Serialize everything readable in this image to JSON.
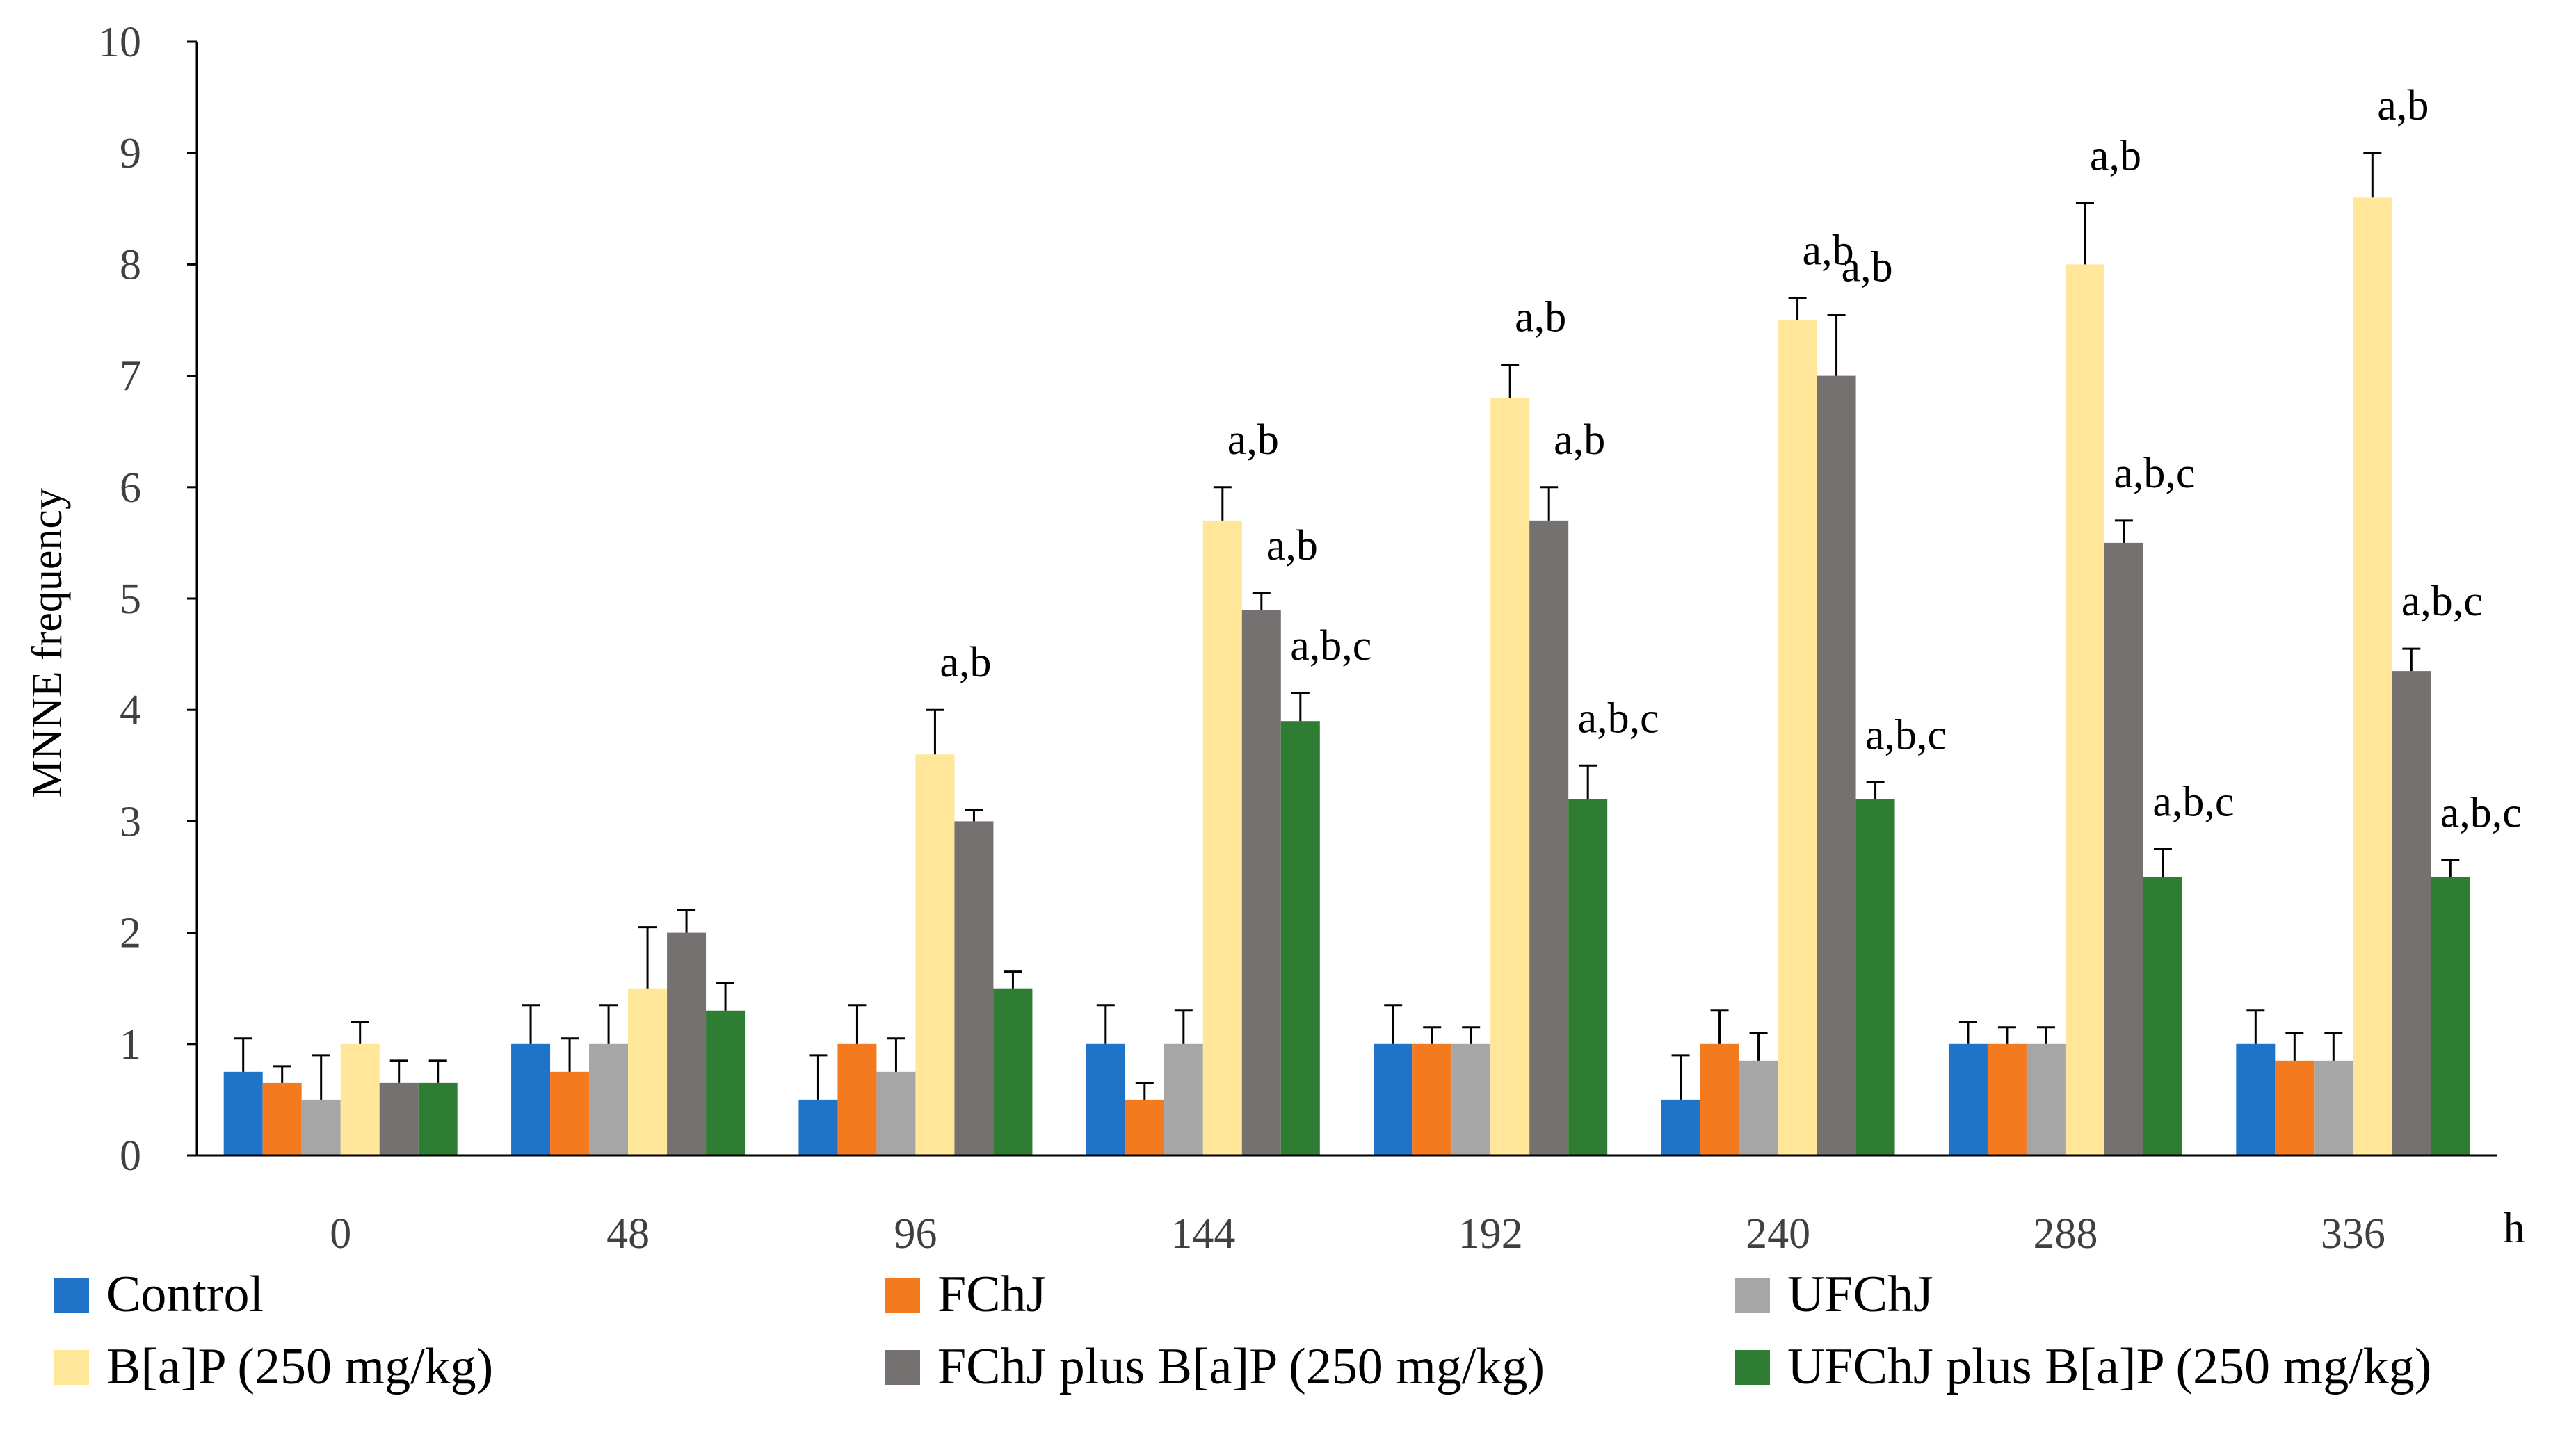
{
  "chart_data": {
    "type": "bar",
    "ylabel": "MNNE  frequency",
    "xunit": "h",
    "ylim": [
      0,
      10
    ],
    "yticks": [
      0,
      1,
      2,
      3,
      4,
      5,
      6,
      7,
      8,
      9,
      10
    ],
    "categories": [
      "0",
      "48",
      "96",
      "144",
      "192",
      "240",
      "288",
      "336"
    ],
    "grid": false,
    "legend_position": "bottom",
    "series": [
      {
        "name": "Control",
        "color": "#1f73c8",
        "values": [
          0.75,
          1.0,
          0.5,
          1.0,
          1.0,
          0.5,
          1.0,
          1.0
        ],
        "errors": [
          0.3,
          0.35,
          0.4,
          0.35,
          0.35,
          0.4,
          0.2,
          0.3
        ],
        "annotations": [
          "",
          "",
          "",
          "",
          "",
          "",
          "",
          ""
        ]
      },
      {
        "name": "FChJ",
        "color": "#f47a20",
        "values": [
          0.65,
          0.75,
          1.0,
          0.5,
          1.0,
          1.0,
          1.0,
          0.85
        ],
        "errors": [
          0.15,
          0.3,
          0.35,
          0.15,
          0.15,
          0.3,
          0.15,
          0.25
        ],
        "annotations": [
          "",
          "",
          "",
          "",
          "",
          "",
          "",
          ""
        ]
      },
      {
        "name": "UFChJ",
        "color": "#a6a6a6",
        "values": [
          0.5,
          1.0,
          0.75,
          1.0,
          1.0,
          0.85,
          1.0,
          0.85
        ],
        "errors": [
          0.4,
          0.35,
          0.3,
          0.3,
          0.15,
          0.25,
          0.15,
          0.25
        ],
        "annotations": [
          "",
          "",
          "",
          "",
          "",
          "",
          "",
          ""
        ]
      },
      {
        "name": "B[a]P (250 mg/kg)",
        "color": "#ffe699",
        "values": [
          1.0,
          1.5,
          3.6,
          5.7,
          6.8,
          7.5,
          8.0,
          8.6
        ],
        "errors": [
          0.2,
          0.55,
          0.4,
          0.3,
          0.3,
          0.2,
          0.55,
          0.4
        ],
        "annotations": [
          "",
          "",
          "a,b",
          "a,b",
          "a,b",
          "a,b",
          "a,b",
          "a,b"
        ]
      },
      {
        "name": "FChJ plus B[a]P (250 mg/kg)",
        "color": "#767171",
        "values": [
          0.65,
          2.0,
          3.0,
          4.9,
          5.7,
          7.0,
          5.5,
          4.35
        ],
        "errors": [
          0.2,
          0.2,
          0.1,
          0.15,
          0.3,
          0.55,
          0.2,
          0.2
        ],
        "annotations": [
          "",
          "",
          "",
          "a,b",
          "a,b",
          "a,b",
          "a,b,c",
          "a,b,c"
        ]
      },
      {
        "name": "UFChJ plus B[a]P (250 mg/kg)",
        "color": "#2e7d32",
        "values": [
          0.65,
          1.3,
          1.5,
          3.9,
          3.2,
          3.2,
          2.5,
          2.5
        ],
        "errors": [
          0.2,
          0.25,
          0.15,
          0.25,
          0.3,
          0.15,
          0.25,
          0.15
        ],
        "annotations": [
          "",
          "",
          "",
          "a,b,c",
          "a,b,c",
          "a,b,c",
          "a,b,c",
          "a,b,c"
        ]
      }
    ]
  }
}
